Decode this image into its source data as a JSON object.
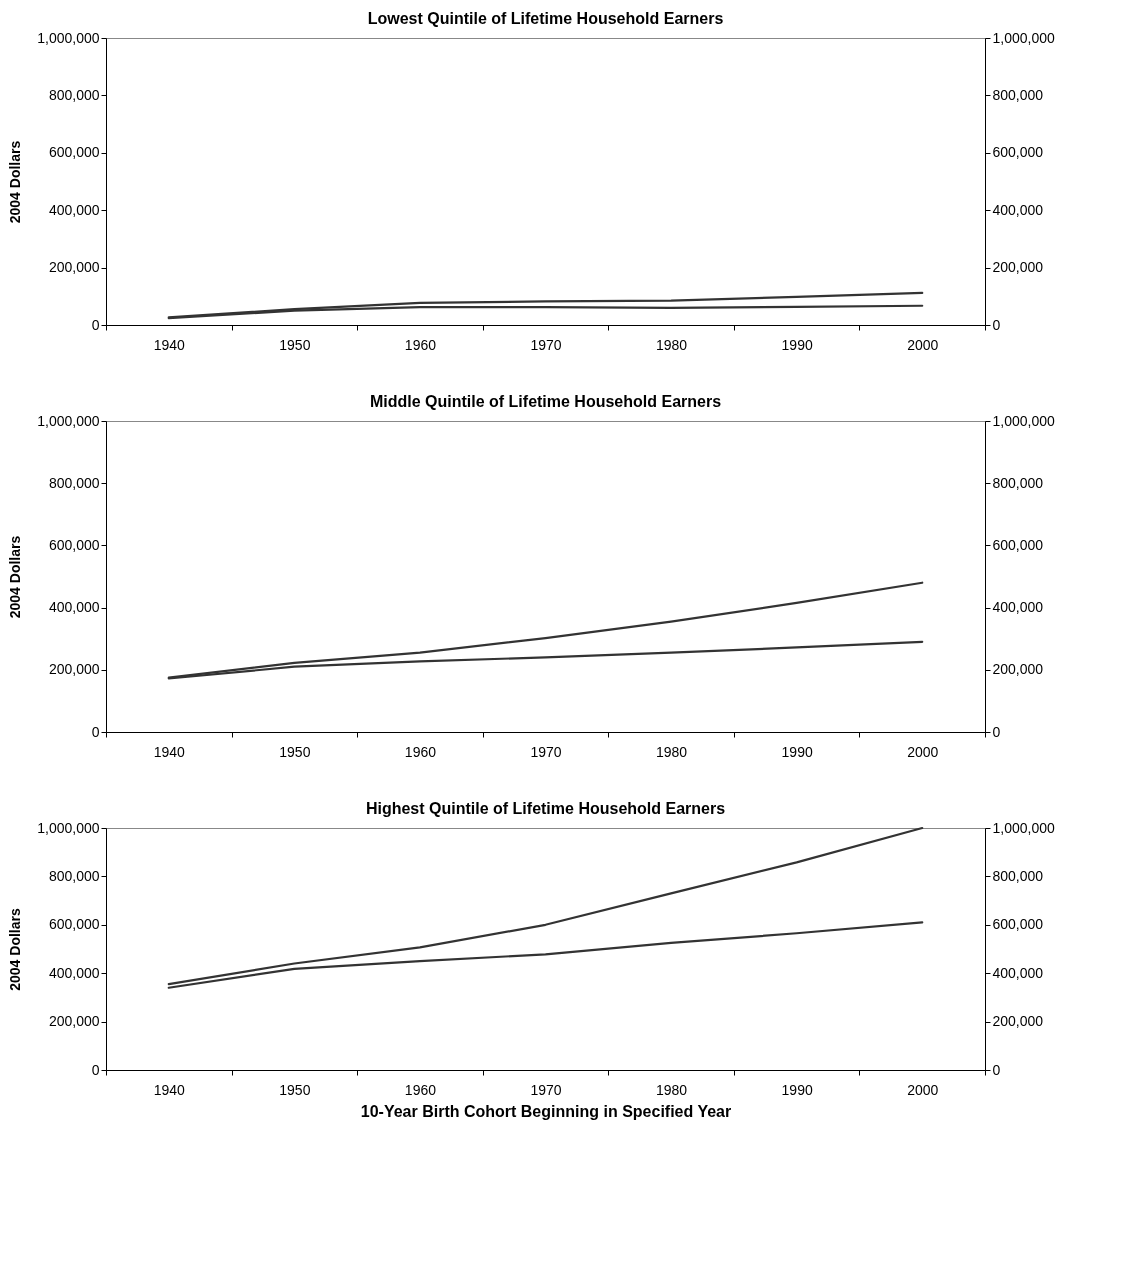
{
  "chart_data": [
    {
      "type": "line",
      "title": "Lowest Quintile of Lifetime Household Earners",
      "ylabel": "2004 Dollars",
      "categories": [
        "1940",
        "1950",
        "1960",
        "1970",
        "1980",
        "1990",
        "2000"
      ],
      "series": [
        {
          "color": "#333333",
          "values": [
            27000,
            55000,
            77000,
            82000,
            85000,
            98000,
            112000
          ]
        },
        {
          "color": "#333333",
          "values": [
            24000,
            50000,
            62000,
            62000,
            60000,
            63000,
            67000
          ]
        }
      ],
      "ylim": [
        0,
        1000000
      ],
      "yticks": [
        {
          "value": 0,
          "label": "0"
        },
        {
          "value": 200000,
          "label": "200,000"
        },
        {
          "value": 400000,
          "label": "400,000"
        },
        {
          "value": 600000,
          "label": "600,000"
        },
        {
          "value": 800000,
          "label": "800,000"
        },
        {
          "value": 1000000,
          "label": "1,000,000"
        }
      ],
      "y2lim": [
        0,
        1000000
      ],
      "y2ticks": [
        {
          "value": 0,
          "label": "0"
        },
        {
          "value": 200000,
          "label": "200,000"
        },
        {
          "value": 400000,
          "label": "400,000"
        },
        {
          "value": 600000,
          "label": "600,000"
        },
        {
          "value": 800000,
          "label": "800,000"
        },
        {
          "value": 1000000,
          "label": "1,000,000"
        }
      ]
    },
    {
      "type": "line",
      "title": "Middle Quintile of Lifetime Household Earners",
      "ylabel": "2004 Dollars",
      "categories": [
        "1940",
        "1950",
        "1960",
        "1970",
        "1980",
        "1990",
        "2000"
      ],
      "series": [
        {
          "color": "#333333",
          "values": [
            175000,
            222000,
            255000,
            302000,
            355000,
            415000,
            480000
          ]
        },
        {
          "color": "#333333",
          "values": [
            172000,
            210000,
            227000,
            240000,
            255000,
            272000,
            290000
          ]
        }
      ],
      "ylim": [
        0,
        1000000
      ],
      "yticks": [
        {
          "value": 0,
          "label": "0"
        },
        {
          "value": 200000,
          "label": "200,000"
        },
        {
          "value": 400000,
          "label": "400,000"
        },
        {
          "value": 600000,
          "label": "600,000"
        },
        {
          "value": 800000,
          "label": "800,000"
        },
        {
          "value": 1000000,
          "label": "1,000,000"
        }
      ],
      "y2lim": [
        0,
        1000000
      ],
      "y2ticks": [
        {
          "value": 0,
          "label": "0"
        },
        {
          "value": 200000,
          "label": "200,000"
        },
        {
          "value": 400000,
          "label": "400,000"
        },
        {
          "value": 600000,
          "label": "600,000"
        },
        {
          "value": 800000,
          "label": "800,000"
        },
        {
          "value": 1000000,
          "label": "1,000,000"
        }
      ]
    },
    {
      "type": "line",
      "title": "Highest Quintile of Lifetime Household Earners",
      "ylabel": "2004 Dollars",
      "xlabel": "10-Year Birth Cohort Beginning in Specified Year",
      "categories": [
        "1940",
        "1950",
        "1960",
        "1970",
        "1980",
        "1990",
        "2000"
      ],
      "series": [
        {
          "color": "#333333",
          "values": [
            355000,
            440000,
            507000,
            600000,
            730000,
            858000,
            1000000
          ]
        },
        {
          "color": "#333333",
          "values": [
            340000,
            418000,
            450000,
            478000,
            525000,
            565000,
            610000
          ]
        }
      ],
      "ylim": [
        0,
        1000000
      ],
      "yticks": [
        {
          "value": 0,
          "label": "0"
        },
        {
          "value": 200000,
          "label": "200,000"
        },
        {
          "value": 400000,
          "label": "400,000"
        },
        {
          "value": 600000,
          "label": "600,000"
        },
        {
          "value": 800000,
          "label": "800,000"
        },
        {
          "value": 1000000,
          "label": "1,000,000"
        }
      ],
      "y2lim": [
        0,
        1000000
      ],
      "y2ticks": [
        {
          "value": 0,
          "label": "0"
        },
        {
          "value": 200000,
          "label": "200,000"
        },
        {
          "value": 400000,
          "label": "400,000"
        },
        {
          "value": 600000,
          "label": "600,000"
        },
        {
          "value": 800000,
          "label": "800,000"
        },
        {
          "value": 1000000,
          "label": "1,000,000"
        }
      ]
    }
  ]
}
